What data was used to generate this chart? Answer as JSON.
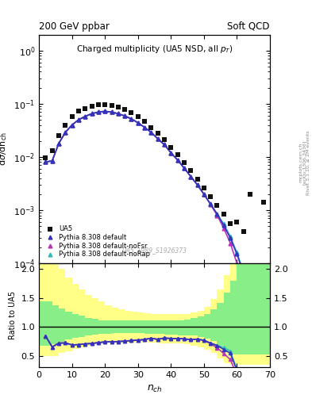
{
  "title_left": "200 GeV ppbar",
  "title_right": "Soft QCD",
  "plot_title": "Charged multiplicity (UA5 NSD, all p_{T})",
  "ylabel_main": "dσ/dn_{ch}",
  "ylabel_ratio": "Ratio to UA5",
  "xlabel": "n_{ch}",
  "watermark": "UA5_1989_S1926373",
  "rivet_text": "Rivet 3.1.10, ≥ 2M events",
  "arxiv_text": "[arXiv:1306.3436]",
  "mcplots_text": "mcplots.cern.ch",
  "ua5_x": [
    2,
    4,
    6,
    8,
    10,
    12,
    14,
    16,
    18,
    20,
    22,
    24,
    26,
    28,
    30,
    32,
    34,
    36,
    38,
    40,
    42,
    44,
    46,
    48,
    50,
    52,
    54,
    56,
    58,
    60,
    62,
    64,
    68
  ],
  "ua5_y": [
    0.0095,
    0.013,
    0.025,
    0.04,
    0.058,
    0.072,
    0.082,
    0.091,
    0.096,
    0.097,
    0.094,
    0.087,
    0.078,
    0.068,
    0.057,
    0.046,
    0.036,
    0.028,
    0.021,
    0.015,
    0.011,
    0.0078,
    0.0055,
    0.0038,
    0.0026,
    0.0018,
    0.00125,
    0.00085,
    0.00055,
    0.0006,
    0.0004,
    0.002,
    0.0014
  ],
  "py_x": [
    2,
    4,
    6,
    8,
    10,
    12,
    14,
    16,
    18,
    20,
    22,
    24,
    26,
    28,
    30,
    32,
    34,
    36,
    38,
    40,
    42,
    44,
    46,
    48,
    50,
    52,
    54,
    56,
    58,
    60,
    62,
    64,
    66
  ],
  "py_default_y": [
    0.008,
    0.0085,
    0.018,
    0.029,
    0.04,
    0.05,
    0.058,
    0.065,
    0.07,
    0.072,
    0.07,
    0.065,
    0.059,
    0.052,
    0.044,
    0.036,
    0.029,
    0.022,
    0.017,
    0.012,
    0.0088,
    0.0062,
    0.0043,
    0.003,
    0.002,
    0.0013,
    0.00085,
    0.00052,
    0.0003,
    0.00015,
    6.5e-05,
    2.2e-05,
    7e-06
  ],
  "py_noFsr_y": [
    0.008,
    0.0085,
    0.018,
    0.029,
    0.04,
    0.05,
    0.058,
    0.065,
    0.07,
    0.072,
    0.07,
    0.065,
    0.059,
    0.052,
    0.044,
    0.036,
    0.029,
    0.022,
    0.017,
    0.012,
    0.0088,
    0.0062,
    0.0043,
    0.003,
    0.002,
    0.00128,
    0.0008,
    0.00046,
    0.00024,
    0.0001,
    3.8e-05,
    1e-05,
    2e-06
  ],
  "py_noRap_y": [
    0.008,
    0.0085,
    0.018,
    0.029,
    0.04,
    0.05,
    0.058,
    0.065,
    0.07,
    0.072,
    0.07,
    0.065,
    0.059,
    0.052,
    0.044,
    0.036,
    0.029,
    0.022,
    0.017,
    0.012,
    0.0088,
    0.0062,
    0.0043,
    0.003,
    0.002,
    0.0013,
    0.00085,
    0.00055,
    0.00032,
    0.00016,
    7e-05,
    2.5e-05,
    8e-06
  ],
  "color_default": "#3333bb",
  "color_noFsr": "#bb33bb",
  "color_noRap": "#33bbbb",
  "color_ua5": "#111111",
  "ylim_main": [
    0.0001,
    2.0
  ],
  "xlim": [
    0,
    70
  ],
  "ylim_ratio": [
    0.3,
    2.1
  ],
  "ratio_yticks": [
    0.5,
    1.0,
    1.5,
    2.0
  ],
  "yellow_edges": [
    0,
    2,
    4,
    6,
    8,
    10,
    12,
    14,
    16,
    18,
    20,
    22,
    24,
    26,
    28,
    30,
    32,
    34,
    36,
    38,
    40,
    42,
    44,
    46,
    48,
    50,
    52,
    54,
    56,
    58,
    60,
    62,
    64,
    66,
    68,
    70
  ],
  "yellow_lo": [
    0.5,
    0.5,
    0.5,
    0.55,
    0.58,
    0.62,
    0.65,
    0.68,
    0.7,
    0.72,
    0.73,
    0.73,
    0.73,
    0.73,
    0.73,
    0.73,
    0.73,
    0.73,
    0.72,
    0.72,
    0.72,
    0.71,
    0.7,
    0.68,
    0.65,
    0.6,
    0.55,
    0.45,
    0.38,
    0.35,
    0.35,
    0.35,
    0.35,
    0.35,
    0.35,
    0.35
  ],
  "yellow_hi": [
    2.1,
    2.1,
    2.1,
    2.0,
    1.85,
    1.75,
    1.65,
    1.55,
    1.5,
    1.45,
    1.38,
    1.33,
    1.3,
    1.28,
    1.26,
    1.25,
    1.24,
    1.23,
    1.23,
    1.22,
    1.22,
    1.22,
    1.23,
    1.25,
    1.28,
    1.35,
    1.48,
    1.65,
    1.9,
    2.1,
    2.1,
    2.1,
    2.1,
    2.1,
    2.1,
    2.1
  ],
  "green_lo": [
    0.68,
    0.68,
    0.7,
    0.75,
    0.78,
    0.81,
    0.83,
    0.85,
    0.87,
    0.88,
    0.88,
    0.89,
    0.89,
    0.89,
    0.89,
    0.89,
    0.88,
    0.88,
    0.88,
    0.87,
    0.87,
    0.86,
    0.86,
    0.85,
    0.83,
    0.8,
    0.76,
    0.68,
    0.58,
    0.52,
    0.52,
    0.52,
    0.52,
    0.52,
    0.52,
    0.52
  ],
  "green_hi": [
    1.45,
    1.45,
    1.38,
    1.32,
    1.27,
    1.22,
    1.19,
    1.16,
    1.14,
    1.12,
    1.12,
    1.11,
    1.11,
    1.11,
    1.11,
    1.11,
    1.11,
    1.11,
    1.11,
    1.11,
    1.11,
    1.12,
    1.13,
    1.15,
    1.18,
    1.22,
    1.3,
    1.42,
    1.6,
    1.8,
    2.1,
    2.1,
    2.1,
    2.1,
    2.1,
    2.1
  ],
  "legend_entries": [
    "UA5",
    "Pythia 8.308 default",
    "Pythia 8.308 default-noFsr",
    "Pythia 8.308 default-noRap"
  ]
}
